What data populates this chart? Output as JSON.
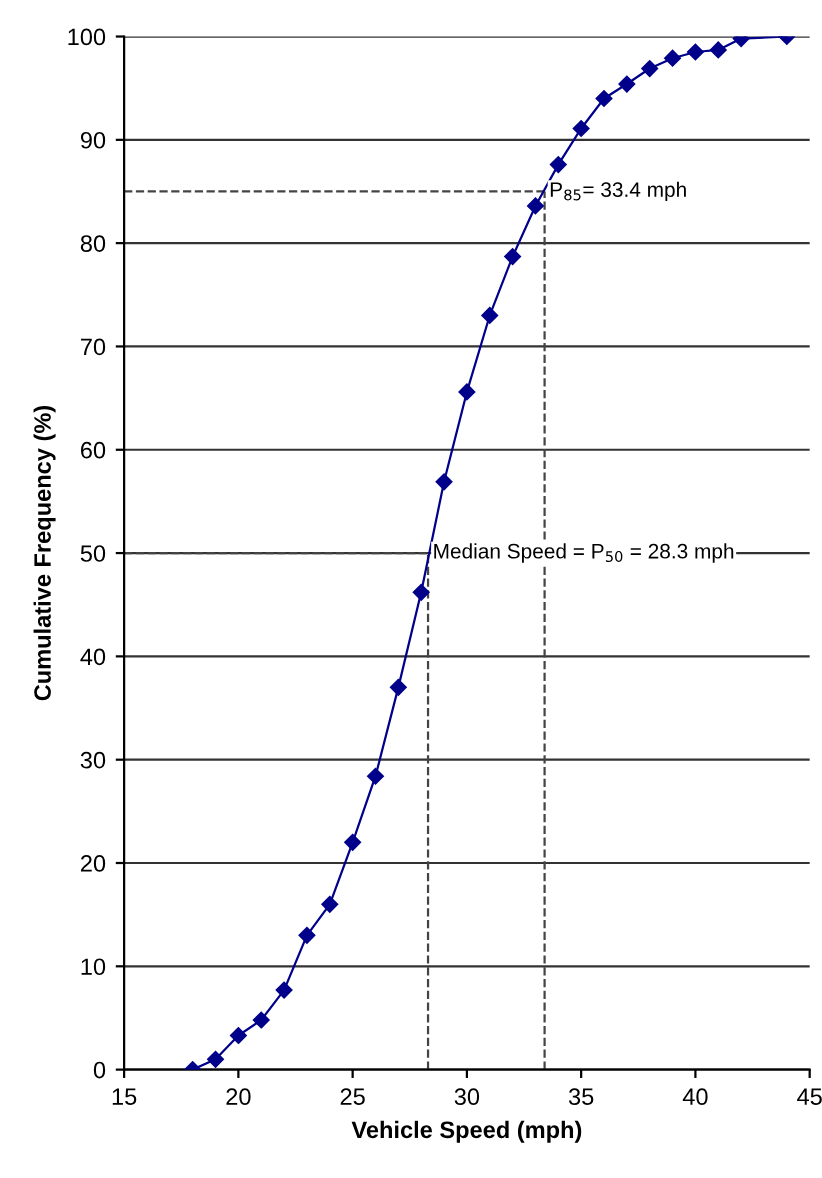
{
  "chart_data": {
    "type": "line",
    "xlabel": "Vehicle Speed (mph)",
    "ylabel": "Cumulative Frequency (%)",
    "x": [
      18,
      19,
      20,
      21,
      22,
      23,
      24,
      25,
      26,
      27,
      28,
      29,
      30,
      31,
      32,
      33,
      34,
      35,
      36,
      37,
      38,
      39,
      40,
      41,
      42,
      44
    ],
    "series": [
      {
        "color": "#00008b",
        "values": [
          0,
          1,
          3.3,
          4.8,
          7.7,
          13,
          16,
          22,
          28.4,
          37,
          46.2,
          56.9,
          65.6,
          73,
          78.7,
          83.6,
          87.6,
          91.1,
          94,
          95.4,
          96.9,
          97.9,
          98.5,
          98.7,
          99.8,
          100
        ]
      }
    ],
    "marker": "diamond",
    "line_style": "solid",
    "grid": "y",
    "legend": false,
    "xlim": [
      15,
      45
    ],
    "ylim": [
      0,
      100
    ],
    "xticks": [
      15,
      20,
      25,
      30,
      35,
      40,
      45
    ],
    "yticks": [
      0,
      10,
      20,
      30,
      40,
      50,
      60,
      70,
      80,
      90,
      100
    ],
    "ref_lines": [
      {
        "axis": "y",
        "value": 85,
        "label": "P$_{85}$= 33.4 mph",
        "color": "#444444",
        "line_style": "dashed"
      },
      {
        "axis": "x",
        "value": 33.4,
        "color": "#444444",
        "line_style": "dashed"
      },
      {
        "axis": "y",
        "value": 50,
        "label": "Median Speed = P$_{50}$ = 28.3 mph",
        "color": "#444444",
        "line_style": "dashed"
      },
      {
        "axis": "x",
        "value": 28.3,
        "color": "#444444",
        "line_style": "dashed"
      }
    ]
  }
}
